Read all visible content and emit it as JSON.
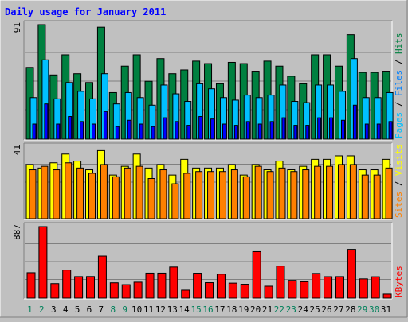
{
  "chart_data": {
    "type": "bar",
    "title": "Daily usage for January 2011",
    "days": [
      "1",
      "2",
      "3",
      "4",
      "5",
      "6",
      "7",
      "8",
      "9",
      "10",
      "11",
      "12",
      "13",
      "14",
      "15",
      "16",
      "17",
      "18",
      "19",
      "20",
      "21",
      "22",
      "23",
      "24",
      "25",
      "26",
      "27",
      "28",
      "29",
      "30",
      "31"
    ],
    "weekend_days": [
      "1",
      "2",
      "8",
      "9",
      "15",
      "16",
      "22",
      "23",
      "29",
      "30"
    ],
    "panels": [
      {
        "name": "hits_files_pages",
        "max_label": "91",
        "ymax": 91,
        "legend": [
          "Pages",
          "Files",
          "Hits"
        ],
        "legend_colors": [
          "#00c0ff",
          "#0080ff",
          "#008040"
        ],
        "series": [
          {
            "name": "Hits",
            "color": "#008040",
            "values": [
              57,
              91,
              51,
              67,
              52,
              45,
              89,
              37,
              58,
              67,
              46,
              64,
              52,
              55,
              62,
              60,
              44,
              61,
              60,
              54,
              62,
              58,
              50,
              44,
              67,
              67,
              58,
              83,
              53,
              53,
              54
            ]
          },
          {
            "name": "Files",
            "color": "#00c0ff",
            "values": [
              33,
              63,
              32,
              45,
              38,
              32,
              52,
              28,
              37,
              33,
              27,
              43,
              36,
              30,
              44,
              40,
              33,
              31,
              35,
              33,
              35,
              43,
              30,
              29,
              43,
              43,
              38,
              64,
              33,
              33,
              37
            ]
          },
          {
            "name": "Pages",
            "color": "#0000ff",
            "values": [
              12,
              28,
              12,
              18,
              14,
              12,
              22,
              10,
              15,
              12,
              10,
              17,
              14,
              11,
              18,
              16,
              12,
              11,
              14,
              12,
              14,
              17,
              11,
              11,
              17,
              17,
              15,
              27,
              12,
              12,
              14
            ]
          }
        ]
      },
      {
        "name": "visits_sites",
        "max_label": "41",
        "ymax": 41,
        "legend": [
          "Sites",
          "Visits"
        ],
        "legend_colors": [
          "#ff8000",
          "#ffff00"
        ],
        "series": [
          {
            "name": "Visits",
            "color": "#ffff00",
            "values": [
              31,
              29,
              32,
              37,
              33,
              28,
              39,
              25,
              30,
              37,
              29,
              31,
              25,
              34,
              29,
              29,
              29,
              31,
              25,
              31,
              28,
              33,
              28,
              30,
              34,
              34,
              36,
              36,
              28,
              28,
              34
            ]
          },
          {
            "name": "Sites",
            "color": "#ff8000",
            "values": [
              28,
              30,
              28,
              32,
              29,
              26,
              31,
              24,
              29,
              30,
              23,
              28,
              20,
              26,
              27,
              27,
              27,
              28,
              24,
              30,
              27,
              29,
              27,
              28,
              30,
              30,
              31,
              31,
              25,
              25,
              29
            ]
          }
        ]
      },
      {
        "name": "kbytes",
        "max_label": "887",
        "ymax": 887,
        "legend": [
          "KBytes"
        ],
        "legend_colors": [
          "#ff0000"
        ],
        "series": [
          {
            "name": "KBytes",
            "color": "#ff0000",
            "values": [
              316,
              887,
              180,
              349,
              267,
              268,
              522,
              190,
              167,
              198,
              311,
              311,
              386,
              99,
              310,
              192,
              298,
              186,
              172,
              577,
              148,
              398,
              220,
              203,
              307,
              266,
              267,
              605,
              238,
              265,
              50
            ]
          }
        ]
      }
    ]
  }
}
